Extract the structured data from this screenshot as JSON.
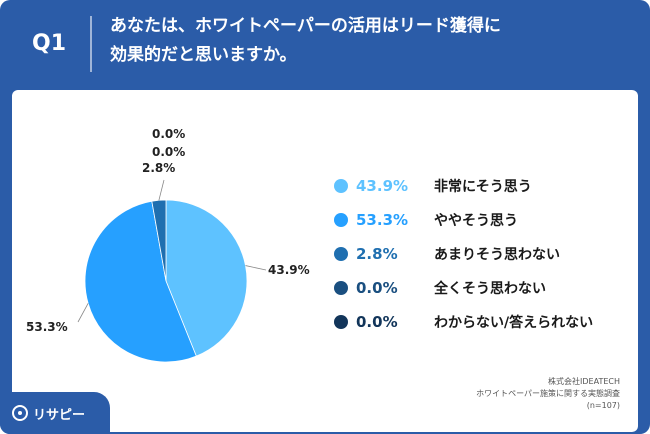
{
  "header": {
    "qnum": "Q1",
    "question_line1": "あなたは、ホワイトペーパーの活用はリード獲得に",
    "question_line2": "効果的だと思いますか。"
  },
  "chart_data": {
    "type": "pie",
    "title": "",
    "start_angle_deg": 0,
    "direction": "clockwise",
    "slices": [
      {
        "label": "非常にそう思う",
        "value": 43.9,
        "display": "43.9%",
        "color": "#5ec2ff"
      },
      {
        "label": "ややそう思う",
        "value": 53.3,
        "display": "53.3%",
        "color": "#26a0ff"
      },
      {
        "label": "あまりそう思わない",
        "value": 2.8,
        "display": "2.8%",
        "color": "#1f6fb0"
      },
      {
        "label": "全くそう思わない",
        "value": 0.0,
        "display": "0.0%",
        "color": "#1a4f80"
      },
      {
        "label": "わからない/答えられない",
        "value": 0.0,
        "display": "0.0%",
        "color": "#12355a"
      }
    ],
    "legend_position": "right"
  },
  "footer": {
    "company": "株式会社IDEATECH",
    "survey": "ホワイトペーパー施策に関する実態調査",
    "sample": "(n=107)"
  },
  "logo": {
    "text": "リサピー",
    "icon": "pin-icon"
  }
}
